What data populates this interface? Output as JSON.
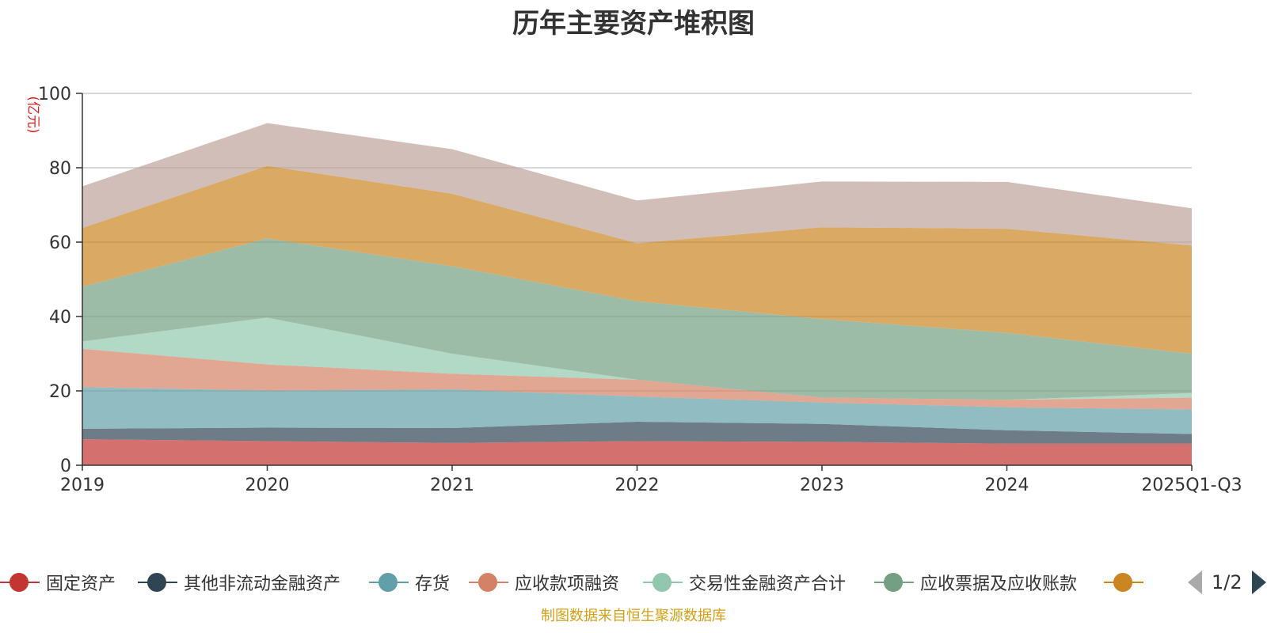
{
  "chart_data": {
    "type": "area",
    "stacked": true,
    "title": "历年主要资产堆积图",
    "unit_label": "(亿元)",
    "categories": [
      "2019",
      "2020",
      "2021",
      "2022",
      "2023",
      "2024",
      "2025Q1-Q3"
    ],
    "ylim": [
      0,
      100
    ],
    "yticks": [
      "0",
      "20",
      "40",
      "60",
      "80",
      "100"
    ],
    "grid": true,
    "series": [
      {
        "name": "固定资产",
        "color": "#c23531",
        "values": [
          7,
          6.5,
          6,
          6.5,
          6.3,
          5.8,
          5.8
        ]
      },
      {
        "name": "其他非流动金融资产",
        "color": "#2f4554",
        "values": [
          2.8,
          3.6,
          4,
          5.2,
          4.8,
          3.6,
          2.6
        ]
      },
      {
        "name": "存货",
        "color": "#61a0a8",
        "values": [
          11.2,
          10,
          10.4,
          6.8,
          5.8,
          6.2,
          6.6
        ]
      },
      {
        "name": "应收款项融资",
        "color": "#d48265",
        "values": [
          10.3,
          7,
          4.2,
          4.5,
          1.3,
          2,
          3.2
        ]
      },
      {
        "name": "交易性金融资产合计",
        "color": "#91c7ae",
        "values": [
          2,
          12.6,
          5.4,
          0,
          0,
          0,
          1.2
        ]
      },
      {
        "name": "应收票据及应收账款",
        "color": "#749f83",
        "values": [
          14.7,
          21.3,
          23.5,
          21.1,
          21.1,
          18,
          10.6
        ]
      },
      {
        "name": "",
        "color": "#ca8622",
        "values": [
          15.8,
          19.5,
          19.5,
          15.6,
          24.7,
          28,
          29.1
        ]
      },
      {
        "name": "",
        "color": "#bda29a",
        "values": [
          11.2,
          11.5,
          12,
          11.5,
          12.3,
          12.6,
          10
        ]
      }
    ]
  },
  "legend": {
    "items": [
      {
        "label": "固定资产",
        "color": "#c23531"
      },
      {
        "label": "其他非流动金融资产",
        "color": "#2f4554"
      },
      {
        "label": "存货",
        "color": "#61a0a8"
      },
      {
        "label": "应收款项融资",
        "color": "#d48265"
      },
      {
        "label": "交易性金融资产合计",
        "color": "#91c7ae"
      },
      {
        "label": "应收票据及应收账款",
        "color": "#749f83"
      },
      {
        "label": "",
        "color": "#ca8622"
      }
    ],
    "page_text": "1/2"
  },
  "source_text": "制图数据来自恒生聚源数据库"
}
